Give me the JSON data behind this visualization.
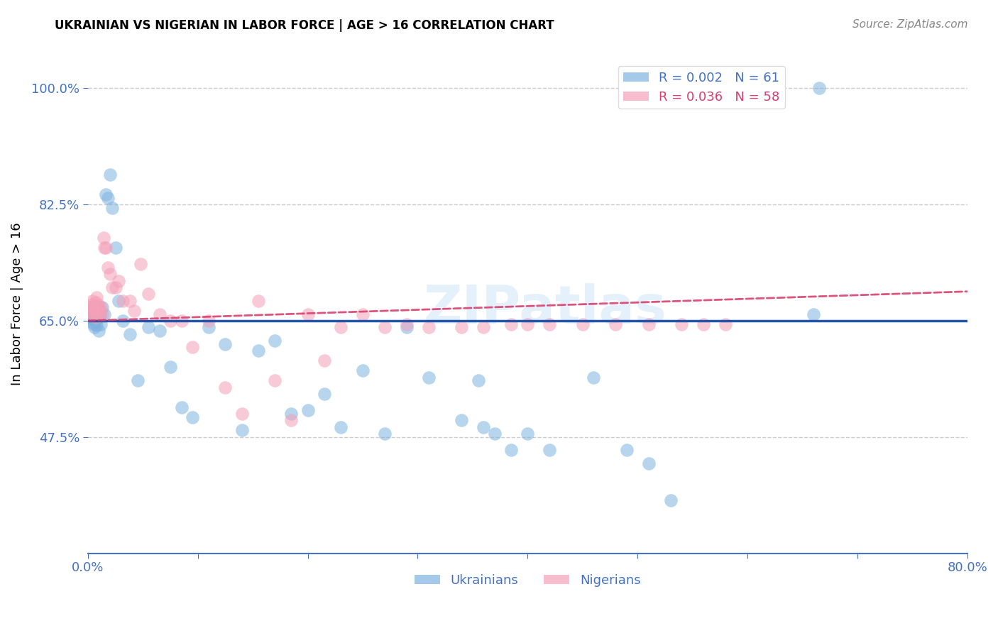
{
  "title": "UKRAINIAN VS NIGERIAN IN LABOR FORCE | AGE > 16 CORRELATION CHART",
  "source": "Source: ZipAtlas.com",
  "ylabel": "In Labor Force | Age > 16",
  "xlim": [
    0.0,
    0.8
  ],
  "ylim": [
    0.3,
    1.05
  ],
  "yticks": [
    0.475,
    0.65,
    0.825,
    1.0
  ],
  "ytick_labels": [
    "47.5%",
    "65.0%",
    "82.5%",
    "100.0%"
  ],
  "xticks": [
    0.0,
    0.1,
    0.2,
    0.3,
    0.4,
    0.5,
    0.6,
    0.7,
    0.8
  ],
  "xtick_labels": [
    "0.0%",
    "",
    "",
    "",
    "",
    "",
    "",
    "",
    "80.0%"
  ],
  "grid_color": "#c8c8c8",
  "background_color": "#ffffff",
  "blue_color": "#7fb3e0",
  "pink_color": "#f4a0b8",
  "trend_blue_color": "#2255aa",
  "trend_pink_color": "#d94070",
  "R_ukrainian": 0.002,
  "N_ukrainian": 61,
  "R_nigerian": 0.036,
  "N_nigerian": 58,
  "legend_label_ukrainian": "Ukrainians",
  "legend_label_nigerian": "Nigerians",
  "axis_color": "#4472c4",
  "ukrainians_x": [
    0.001,
    0.002,
    0.003,
    0.003,
    0.004,
    0.004,
    0.005,
    0.005,
    0.006,
    0.006,
    0.007,
    0.007,
    0.008,
    0.008,
    0.009,
    0.01,
    0.01,
    0.011,
    0.012,
    0.013,
    0.015,
    0.016,
    0.018,
    0.02,
    0.022,
    0.025,
    0.028,
    0.032,
    0.038,
    0.045,
    0.055,
    0.065,
    0.075,
    0.085,
    0.095,
    0.11,
    0.125,
    0.14,
    0.155,
    0.17,
    0.185,
    0.2,
    0.215,
    0.23,
    0.25,
    0.27,
    0.29,
    0.31,
    0.34,
    0.36,
    0.385,
    0.4,
    0.42,
    0.46,
    0.49,
    0.51,
    0.53,
    0.355,
    0.37,
    0.66,
    0.665
  ],
  "ukrainians_y": [
    0.66,
    0.655,
    0.658,
    0.652,
    0.66,
    0.648,
    0.665,
    0.645,
    0.67,
    0.64,
    0.658,
    0.65,
    0.662,
    0.643,
    0.655,
    0.668,
    0.635,
    0.66,
    0.645,
    0.67,
    0.66,
    0.84,
    0.835,
    0.87,
    0.82,
    0.76,
    0.68,
    0.65,
    0.63,
    0.56,
    0.64,
    0.635,
    0.58,
    0.52,
    0.505,
    0.64,
    0.615,
    0.485,
    0.605,
    0.62,
    0.51,
    0.515,
    0.54,
    0.49,
    0.575,
    0.48,
    0.64,
    0.565,
    0.5,
    0.49,
    0.455,
    0.48,
    0.455,
    0.565,
    0.455,
    0.435,
    0.38,
    0.56,
    0.48,
    0.66,
    1.0
  ],
  "nigerians_x": [
    0.001,
    0.002,
    0.003,
    0.003,
    0.004,
    0.005,
    0.005,
    0.006,
    0.007,
    0.007,
    0.008,
    0.009,
    0.009,
    0.01,
    0.011,
    0.012,
    0.013,
    0.014,
    0.015,
    0.016,
    0.018,
    0.02,
    0.022,
    0.025,
    0.028,
    0.032,
    0.038,
    0.042,
    0.048,
    0.055,
    0.065,
    0.075,
    0.085,
    0.095,
    0.11,
    0.125,
    0.14,
    0.155,
    0.17,
    0.185,
    0.2,
    0.215,
    0.23,
    0.25,
    0.27,
    0.29,
    0.31,
    0.34,
    0.36,
    0.385,
    0.4,
    0.42,
    0.45,
    0.48,
    0.51,
    0.54,
    0.56,
    0.58
  ],
  "nigerians_y": [
    0.67,
    0.665,
    0.675,
    0.658,
    0.68,
    0.66,
    0.672,
    0.668,
    0.678,
    0.655,
    0.685,
    0.66,
    0.67,
    0.673,
    0.665,
    0.67,
    0.66,
    0.775,
    0.76,
    0.76,
    0.73,
    0.72,
    0.7,
    0.7,
    0.71,
    0.68,
    0.68,
    0.665,
    0.735,
    0.69,
    0.66,
    0.65,
    0.65,
    0.61,
    0.65,
    0.55,
    0.51,
    0.68,
    0.56,
    0.5,
    0.66,
    0.59,
    0.64,
    0.66,
    0.64,
    0.645,
    0.64,
    0.64,
    0.64,
    0.645,
    0.645,
    0.645,
    0.645,
    0.645,
    0.645,
    0.645,
    0.645,
    0.645
  ]
}
